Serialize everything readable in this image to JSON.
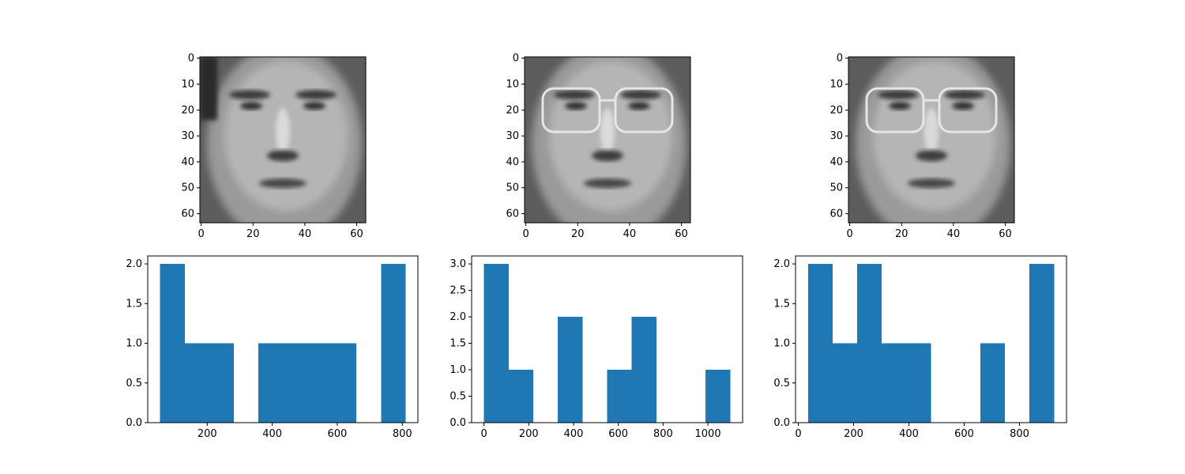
{
  "figure": {
    "background": "#ffffff"
  },
  "images": [
    {
      "kind": "face-image",
      "colormap": "gray",
      "x_range": [
        -0.5,
        63.5
      ],
      "y_range": [
        -0.5,
        63.5
      ],
      "xticks": [
        0,
        20,
        40,
        60
      ],
      "yticks": [
        0,
        10,
        20,
        30,
        40,
        50,
        60
      ],
      "features": {
        "glasses": false,
        "dark_left_edge": true
      }
    },
    {
      "kind": "face-image",
      "colormap": "gray",
      "x_range": [
        -0.5,
        63.5
      ],
      "y_range": [
        -0.5,
        63.5
      ],
      "xticks": [
        0,
        20,
        40,
        60
      ],
      "yticks": [
        0,
        10,
        20,
        30,
        40,
        50,
        60
      ],
      "features": {
        "glasses": true,
        "dark_left_edge": false
      }
    },
    {
      "kind": "face-image",
      "colormap": "gray",
      "x_range": [
        -0.5,
        63.5
      ],
      "y_range": [
        -0.5,
        63.5
      ],
      "xticks": [
        0,
        20,
        40,
        60
      ],
      "yticks": [
        0,
        10,
        20,
        30,
        40,
        50,
        60
      ],
      "features": {
        "glasses": true,
        "dark_left_edge": false
      }
    }
  ],
  "chart_data": [
    {
      "type": "bar",
      "subtype": "histogram",
      "color": "#1f77b4",
      "bin_edges": [
        55,
        131,
        206,
        282,
        357,
        433,
        508,
        584,
        659,
        735,
        810
      ],
      "counts": [
        2,
        1,
        1,
        0,
        1,
        1,
        1,
        1,
        0,
        2
      ],
      "xlim": [
        17,
        848
      ],
      "ylim": [
        0,
        2.1
      ],
      "xticks": [
        200,
        400,
        600,
        800
      ],
      "yticks": [
        0.0,
        0.5,
        1.0,
        1.5,
        2.0
      ],
      "xtick_labels": [
        "200",
        "400",
        "600",
        "800"
      ],
      "ytick_labels": [
        "0.0",
        "0.5",
        "1.0",
        "1.5",
        "2.0"
      ],
      "title": "",
      "xlabel": "",
      "ylabel": ""
    },
    {
      "type": "bar",
      "subtype": "histogram",
      "color": "#1f77b4",
      "bin_edges": [
        0,
        110,
        220,
        330,
        440,
        550,
        660,
        770,
        880,
        990,
        1100
      ],
      "counts": [
        3,
        1,
        0,
        2,
        0,
        1,
        2,
        0,
        0,
        1
      ],
      "xlim": [
        -55,
        1155
      ],
      "ylim": [
        0,
        3.15
      ],
      "xticks": [
        0,
        200,
        400,
        600,
        800,
        1000
      ],
      "yticks": [
        0.0,
        0.5,
        1.0,
        1.5,
        2.0,
        2.5,
        3.0
      ],
      "xtick_labels": [
        "0",
        "200",
        "400",
        "600",
        "800",
        "1000"
      ],
      "ytick_labels": [
        "0.0",
        "0.5",
        "1.0",
        "1.5",
        "2.0",
        "2.5",
        "3.0"
      ],
      "title": "",
      "xlabel": "",
      "ylabel": ""
    },
    {
      "type": "bar",
      "subtype": "histogram",
      "color": "#1f77b4",
      "bin_edges": [
        35,
        124,
        213,
        302,
        391,
        480,
        569,
        658,
        747,
        836,
        925
      ],
      "counts": [
        2,
        1,
        2,
        1,
        1,
        0,
        0,
        1,
        0,
        2
      ],
      "xlim": [
        -10,
        970
      ],
      "ylim": [
        0,
        2.1
      ],
      "xticks": [
        0,
        200,
        400,
        600,
        800
      ],
      "yticks": [
        0.0,
        0.5,
        1.0,
        1.5,
        2.0
      ],
      "xtick_labels": [
        "0",
        "200",
        "400",
        "600",
        "800"
      ],
      "ytick_labels": [
        "0.0",
        "0.5",
        "1.0",
        "1.5",
        "2.0"
      ],
      "title": "",
      "xlabel": "",
      "ylabel": ""
    }
  ]
}
